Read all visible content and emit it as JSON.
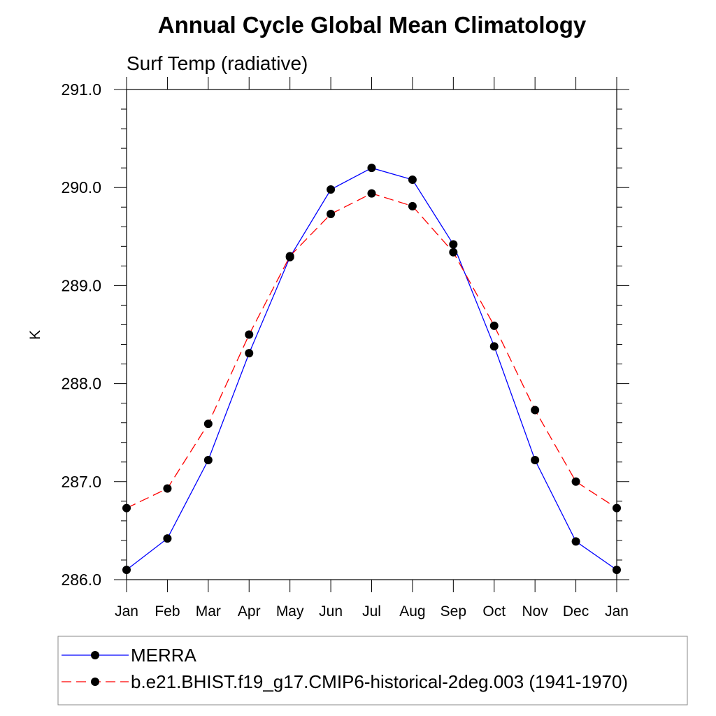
{
  "chart_data": {
    "type": "line",
    "title": "Annual Cycle Global Mean Climatology",
    "subtitle": "Surf Temp (radiative)",
    "xlabel": "",
    "ylabel": "K",
    "categories": [
      "Jan",
      "Feb",
      "Mar",
      "Apr",
      "May",
      "Jun",
      "Jul",
      "Aug",
      "Sep",
      "Oct",
      "Nov",
      "Dec",
      "Jan"
    ],
    "ylim": [
      286.0,
      291.0
    ],
    "yticks": [
      "286.0",
      "287.0",
      "288.0",
      "289.0",
      "290.0",
      "291.0"
    ],
    "grid": false,
    "legend_position": "bottom",
    "series": [
      {
        "name": "MERRA",
        "color": "#0000ff",
        "line_style": "solid",
        "marker": "filled-circle",
        "values": [
          286.1,
          286.42,
          287.22,
          288.31,
          289.29,
          289.98,
          290.2,
          290.08,
          289.42,
          288.38,
          287.22,
          286.39,
          286.1
        ]
      },
      {
        "name": "b.e21.BHIST.f19_g17.CMIP6-historical-2deg.003 (1941-1970)",
        "color": "#ff0000",
        "line_style": "dashed",
        "marker": "filled-circle",
        "values": [
          286.73,
          286.93,
          287.59,
          288.5,
          289.3,
          289.73,
          289.94,
          289.81,
          289.34,
          288.59,
          287.73,
          287.0,
          286.73
        ]
      }
    ]
  }
}
